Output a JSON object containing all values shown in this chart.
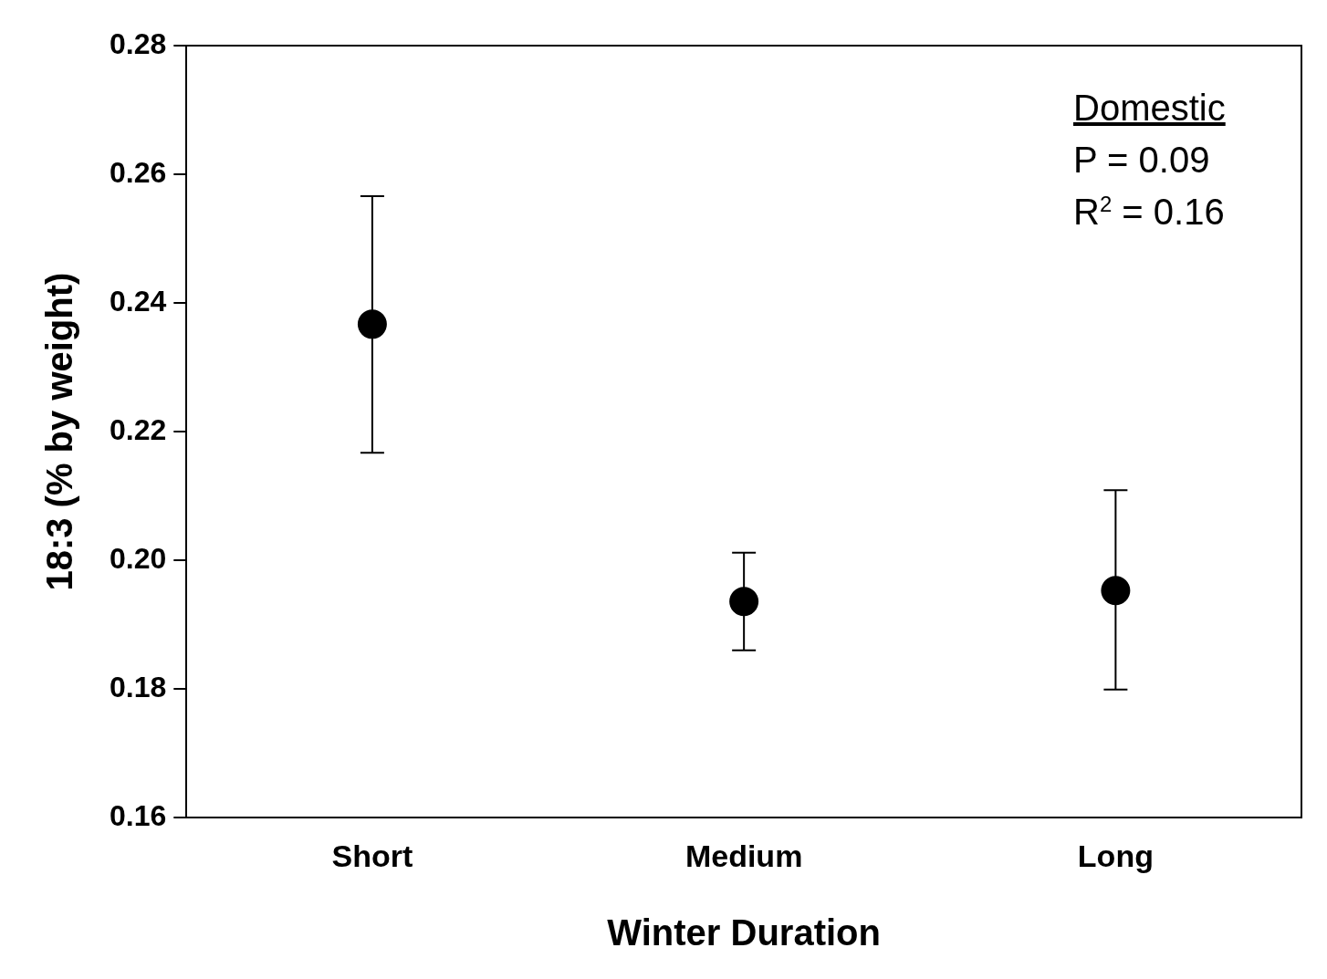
{
  "chart_data": {
    "type": "scatter",
    "xlabel": "Winter Duration",
    "ylabel": "18:3 (% by weight)",
    "categories": [
      "Short",
      "Medium",
      "Long"
    ],
    "values": [
      0.2367,
      0.1936,
      0.1953
    ],
    "errors": [
      [
        0.2167,
        0.2566
      ],
      [
        0.186,
        0.2012
      ],
      [
        0.1799,
        0.2109
      ]
    ],
    "color": "#000000",
    "marker": "circle",
    "grid": false,
    "legend": false,
    "ylim": [
      0.16,
      0.28
    ],
    "yticks": [
      {
        "value": 0.16,
        "label": "0.16"
      },
      {
        "value": 0.18,
        "label": "0.18"
      },
      {
        "value": 0.2,
        "label": "0.20"
      },
      {
        "value": 0.22,
        "label": "0.22"
      },
      {
        "value": 0.24,
        "label": "0.24"
      },
      {
        "value": 0.26,
        "label": "0.26"
      },
      {
        "value": 0.28,
        "label": "0.28"
      }
    ],
    "annotations": [
      "Domestic",
      "P = 0.09",
      "R$^{2}$ = 0.16"
    ]
  }
}
